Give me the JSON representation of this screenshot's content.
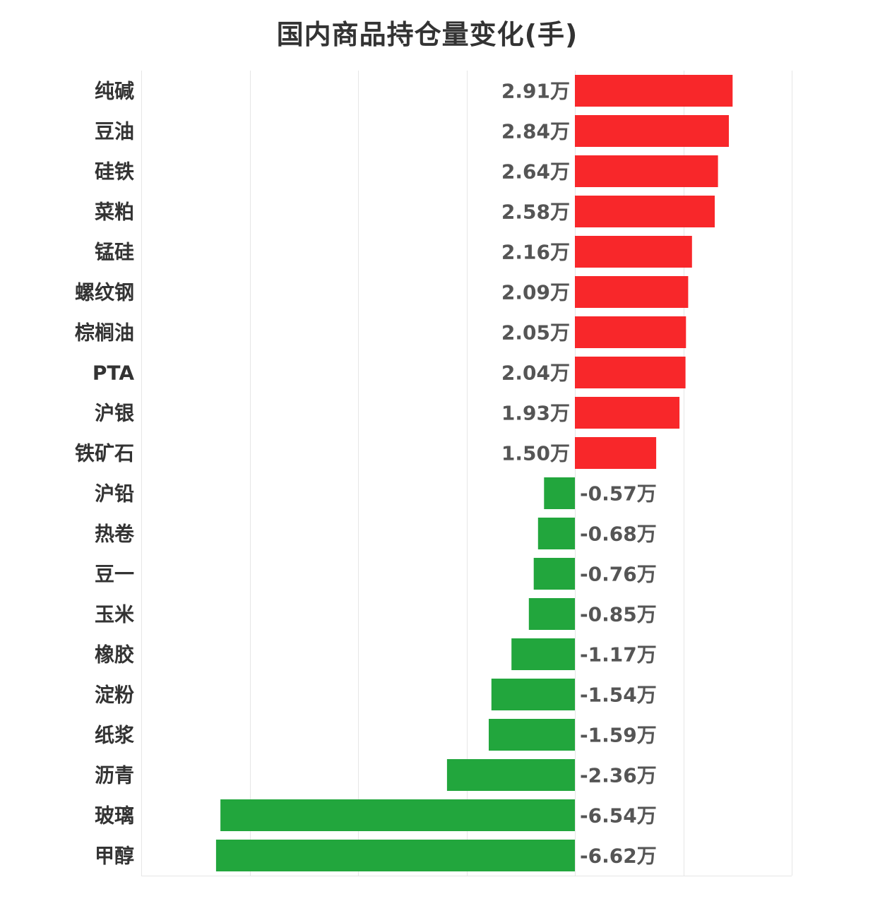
{
  "colors": {
    "positive": "#f8272a",
    "negative": "#22a63d",
    "text": "#333333",
    "value_text": "#555555",
    "grid": "#e6e6e6"
  },
  "chart_data": {
    "type": "bar",
    "orientation": "horizontal",
    "title": "国内商品持仓量变化(手)",
    "xlabel": "",
    "ylabel": "",
    "unit_suffix": "万",
    "xlim": [
      -8,
      4
    ],
    "grid": true,
    "legend": "none",
    "categories": [
      "纯碱",
      "豆油",
      "硅铁",
      "菜粕",
      "锰硅",
      "螺纹钢",
      "棕榈油",
      "PTA",
      "沪银",
      "铁矿石",
      "沪铅",
      "热卷",
      "豆一",
      "玉米",
      "橡胶",
      "淀粉",
      "纸浆",
      "沥青",
      "玻璃",
      "甲醇"
    ],
    "values": [
      2.91,
      2.84,
      2.64,
      2.58,
      2.16,
      2.09,
      2.05,
      2.04,
      1.93,
      1.5,
      -0.57,
      -0.68,
      -0.76,
      -0.85,
      -1.17,
      -1.54,
      -1.59,
      -2.36,
      -6.54,
      -6.62
    ],
    "value_labels": [
      "2.91万",
      "2.84万",
      "2.64万",
      "2.58万",
      "2.16万",
      "2.09万",
      "2.05万",
      "2.04万",
      "1.93万",
      "1.50万",
      "-0.57万",
      "-0.68万",
      "-0.76万",
      "-0.85万",
      "-1.17万",
      "-1.54万",
      "-1.59万",
      "-2.36万",
      "-6.54万",
      "-6.62万"
    ]
  }
}
